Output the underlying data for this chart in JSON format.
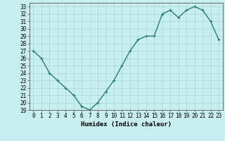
{
  "x": [
    0,
    1,
    2,
    3,
    4,
    5,
    6,
    7,
    8,
    9,
    10,
    11,
    12,
    13,
    14,
    15,
    16,
    17,
    18,
    19,
    20,
    21,
    22,
    23
  ],
  "y": [
    27,
    26,
    24,
    23,
    22,
    21,
    19.5,
    19,
    20,
    21.5,
    23,
    25,
    27,
    28.5,
    29,
    29,
    32,
    32.5,
    31.5,
    32.5,
    33,
    32.5,
    31,
    28.5
  ],
  "line_color": "#2d7a6e",
  "marker": "+",
  "marker_color": "#2d7a6e",
  "bg_color": "#c8eef0",
  "grid_color": "#aadddd",
  "xlabel": "Humidex (Indice chaleur)",
  "xlim": [
    -0.5,
    23.5
  ],
  "ylim": [
    19,
    33.5
  ],
  "yticks": [
    19,
    20,
    21,
    22,
    23,
    24,
    25,
    26,
    27,
    28,
    29,
    30,
    31,
    32,
    33
  ],
  "xticks": [
    0,
    1,
    2,
    3,
    4,
    5,
    6,
    7,
    8,
    9,
    10,
    11,
    12,
    13,
    14,
    15,
    16,
    17,
    18,
    19,
    20,
    21,
    22,
    23
  ],
  "tick_fontsize": 5.5,
  "xlabel_fontsize": 6.5,
  "linewidth": 1.0,
  "markersize": 3.5
}
